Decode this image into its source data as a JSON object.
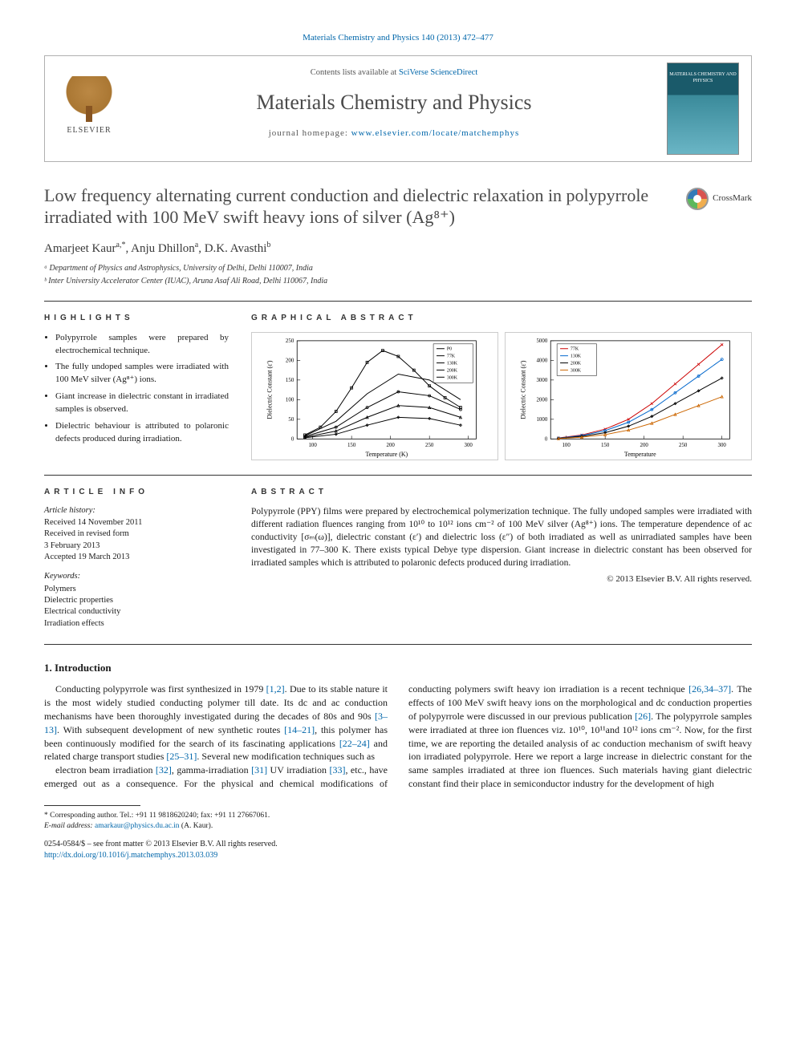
{
  "citation": "Materials Chemistry and Physics 140 (2013) 472–477",
  "header": {
    "publisher": "ELSEVIER",
    "contents_prefix": "Contents lists available at ",
    "contents_link": "SciVerse ScienceDirect",
    "journal": "Materials Chemistry and Physics",
    "homepage_prefix": "journal homepage: ",
    "homepage_url": "www.elsevier.com/locate/matchemphys",
    "cover_text": "MATERIALS\nCHEMISTRY\nAND PHYSICS"
  },
  "title": "Low frequency alternating current conduction and dielectric relaxation in polypyrrole irradiated with 100 MeV swift heavy ions of silver (Ag⁸⁺)",
  "crossmark": "CrossMark",
  "authors_html": "Amarjeet Kaur<sup>a,*</sup>, Anju Dhillon<sup>a</sup>, D.K. Avasthi<sup>b</sup>",
  "affiliations": [
    "ᵃ Department of Physics and Astrophysics, University of Delhi, Delhi 110007, India",
    "ᵇ Inter University Accelerator Center (IUAC), Aruna Asaf Ali Road, Delhi 110067, India"
  ],
  "highlights_head": "HIGHLIGHTS",
  "highlights": [
    "Polypyrrole samples were prepared by electrochemical technique.",
    "The fully undoped samples were irradiated with 100 MeV silver (Ag⁸⁺) ions.",
    "Giant increase in dielectric constant in irradiated samples is observed.",
    "Dielectric behaviour is attributed to polaronic defects produced during irradiation."
  ],
  "ga_head": "GRAPHICAL ABSTRACT",
  "ga_chart1": {
    "type": "line",
    "xlabel": "Temperature (K)",
    "ylabel": "Dielectric Constant (ε')",
    "xlim": [
      80,
      310
    ],
    "ylim": [
      0,
      250
    ],
    "xticks": [
      100,
      150,
      200,
      250,
      300
    ],
    "yticks": [
      0,
      50,
      100,
      150,
      200,
      250
    ],
    "legend_pos": "upper-right",
    "legend": [
      "P0",
      "77K",
      "130K",
      "200K",
      "300K"
    ],
    "background_color": "#ffffff",
    "axis_color": "#000000",
    "tick_fontsize": 7,
    "label_fontsize": 8,
    "line_width": 1,
    "marker_size": 3,
    "series": [
      {
        "label": "P0",
        "color": "#000000",
        "marker": "square",
        "x": [
          90,
          110,
          130,
          150,
          170,
          190,
          210,
          230,
          250,
          270,
          290
        ],
        "y": [
          10,
          30,
          70,
          130,
          195,
          225,
          210,
          175,
          135,
          105,
          80
        ]
      },
      {
        "label": "77K",
        "color": "#000000",
        "marker": "none",
        "x": [
          90,
          130,
          170,
          210,
          250,
          290
        ],
        "y": [
          8,
          45,
          115,
          165,
          150,
          100
        ]
      },
      {
        "label": "130K",
        "color": "#000000",
        "marker": "circle",
        "x": [
          90,
          130,
          170,
          210,
          250,
          290
        ],
        "y": [
          6,
          30,
          80,
          120,
          110,
          75
        ]
      },
      {
        "label": "200K",
        "color": "#000000",
        "marker": "triangle",
        "x": [
          90,
          130,
          170,
          210,
          250,
          290
        ],
        "y": [
          4,
          20,
          55,
          85,
          80,
          55
        ]
      },
      {
        "label": "300K",
        "color": "#000000",
        "marker": "diamond",
        "x": [
          90,
          130,
          170,
          210,
          250,
          290
        ],
        "y": [
          3,
          12,
          35,
          55,
          52,
          35
        ]
      }
    ]
  },
  "ga_chart2": {
    "type": "line",
    "xlabel": "Temperature",
    "ylabel": "Dielectric Constant (ε')",
    "xlim": [
      80,
      310
    ],
    "ylim": [
      0,
      5000
    ],
    "xticks": [
      100,
      150,
      200,
      250,
      300
    ],
    "yticks": [
      0,
      1000,
      2000,
      3000,
      4000,
      5000
    ],
    "legend_pos": "upper-left",
    "legend": [
      "77K",
      "130K",
      "200K",
      "300K"
    ],
    "background_color": "#ffffff",
    "axis_color": "#000000",
    "tick_fontsize": 7,
    "label_fontsize": 8,
    "line_width": 1,
    "marker_size": 3,
    "series": [
      {
        "label": "77K",
        "color": "#cc0000",
        "marker": "x",
        "x": [
          90,
          120,
          150,
          180,
          210,
          240,
          270,
          300
        ],
        "y": [
          50,
          200,
          500,
          1000,
          1800,
          2800,
          3800,
          4800
        ]
      },
      {
        "label": "130K",
        "color": "#0066cc",
        "marker": "circle",
        "x": [
          90,
          120,
          150,
          180,
          210,
          240,
          270,
          300
        ],
        "y": [
          40,
          170,
          420,
          850,
          1500,
          2350,
          3200,
          4050
        ]
      },
      {
        "label": "200K",
        "color": "#000000",
        "marker": "diamond",
        "x": [
          90,
          120,
          150,
          180,
          210,
          240,
          270,
          300
        ],
        "y": [
          30,
          130,
          320,
          650,
          1150,
          1800,
          2450,
          3100
        ]
      },
      {
        "label": "300K",
        "color": "#cc6600",
        "marker": "triangle",
        "x": [
          90,
          120,
          150,
          180,
          210,
          240,
          270,
          300
        ],
        "y": [
          20,
          90,
          220,
          450,
          800,
          1250,
          1700,
          2150
        ]
      }
    ]
  },
  "ai_head": "ARTICLE INFO",
  "article_info": {
    "history_head": "Article history:",
    "history": [
      "Received 14 November 2011",
      "Received in revised form",
      "3 February 2013",
      "Accepted 19 March 2013"
    ],
    "keywords_head": "Keywords:",
    "keywords": [
      "Polymers",
      "Dielectric properties",
      "Electrical conductivity",
      "Irradiation effects"
    ]
  },
  "abstract_head": "ABSTRACT",
  "abstract": "Polypyrrole (PPY) films were prepared by electrochemical polymerization technique. The fully undoped samples were irradiated with different radiation fluences ranging from 10¹⁰ to 10¹² ions cm⁻² of 100 MeV silver (Ag⁸⁺) ions. The temperature dependence of ac conductivity [σₘ(ω)], dielectric constant (ε′) and dielectric loss (ε″) of both irradiated as well as unirradiated samples have been investigated in 77–300 K. There exists typical Debye type dispersion. Giant increase in dielectric constant has been observed for irradiated samples which is attributed to polaronic defects produced during irradiation.",
  "copyright": "© 2013 Elsevier B.V. All rights reserved.",
  "intro_head": "1. Introduction",
  "intro_p1": "Conducting polypyrrole was first synthesized in 1979 [1,2]. Due to its stable nature it is the most widely studied conducting polymer till date. Its dc and ac conduction mechanisms have been thoroughly investigated during the decades of 80s and 90s [3–13]. With subsequent development of new synthetic routes [14–21], this polymer has been continuously modified for the search of its fascinating applications [22–24] and related charge transport studies [25–31]. Several new modification techniques such as",
  "intro_p2": "electron beam irradiation [32], gamma-irradiation [31] UV irradiation [33], etc., have emerged out as a consequence. For the physical and chemical modifications of conducting polymers swift heavy ion irradiation is a recent technique [26,34–37]. The effects of 100 MeV swift heavy ions on the morphological and dc conduction properties of polypyrrole were discussed in our previous publication [26]. The polypyrrole samples were irradiated at three ion fluences viz. 10¹⁰, 10¹¹and 10¹² ions cm⁻². Now, for the first time, we are reporting the detailed analysis of ac conduction mechanism of swift heavy ion irradiated polypyrrole. Here we report a large increase in dielectric constant for the same samples irradiated at three ion fluences. Such materials having giant dielectric constant find their place in semiconductor industry for the development of high",
  "footnote": {
    "corr": "* Corresponding author. Tel.: +91 11 9818620240; fax: +91 11 27667061.",
    "email_label": "E-mail address: ",
    "email": "amarkaur@physics.du.ac.in",
    "email_name": " (A. Kaur)."
  },
  "footer": {
    "issn": "0254-0584/$ – see front matter © 2013 Elsevier B.V. All rights reserved.",
    "doi": "http://dx.doi.org/10.1016/j.matchemphys.2013.03.039"
  }
}
